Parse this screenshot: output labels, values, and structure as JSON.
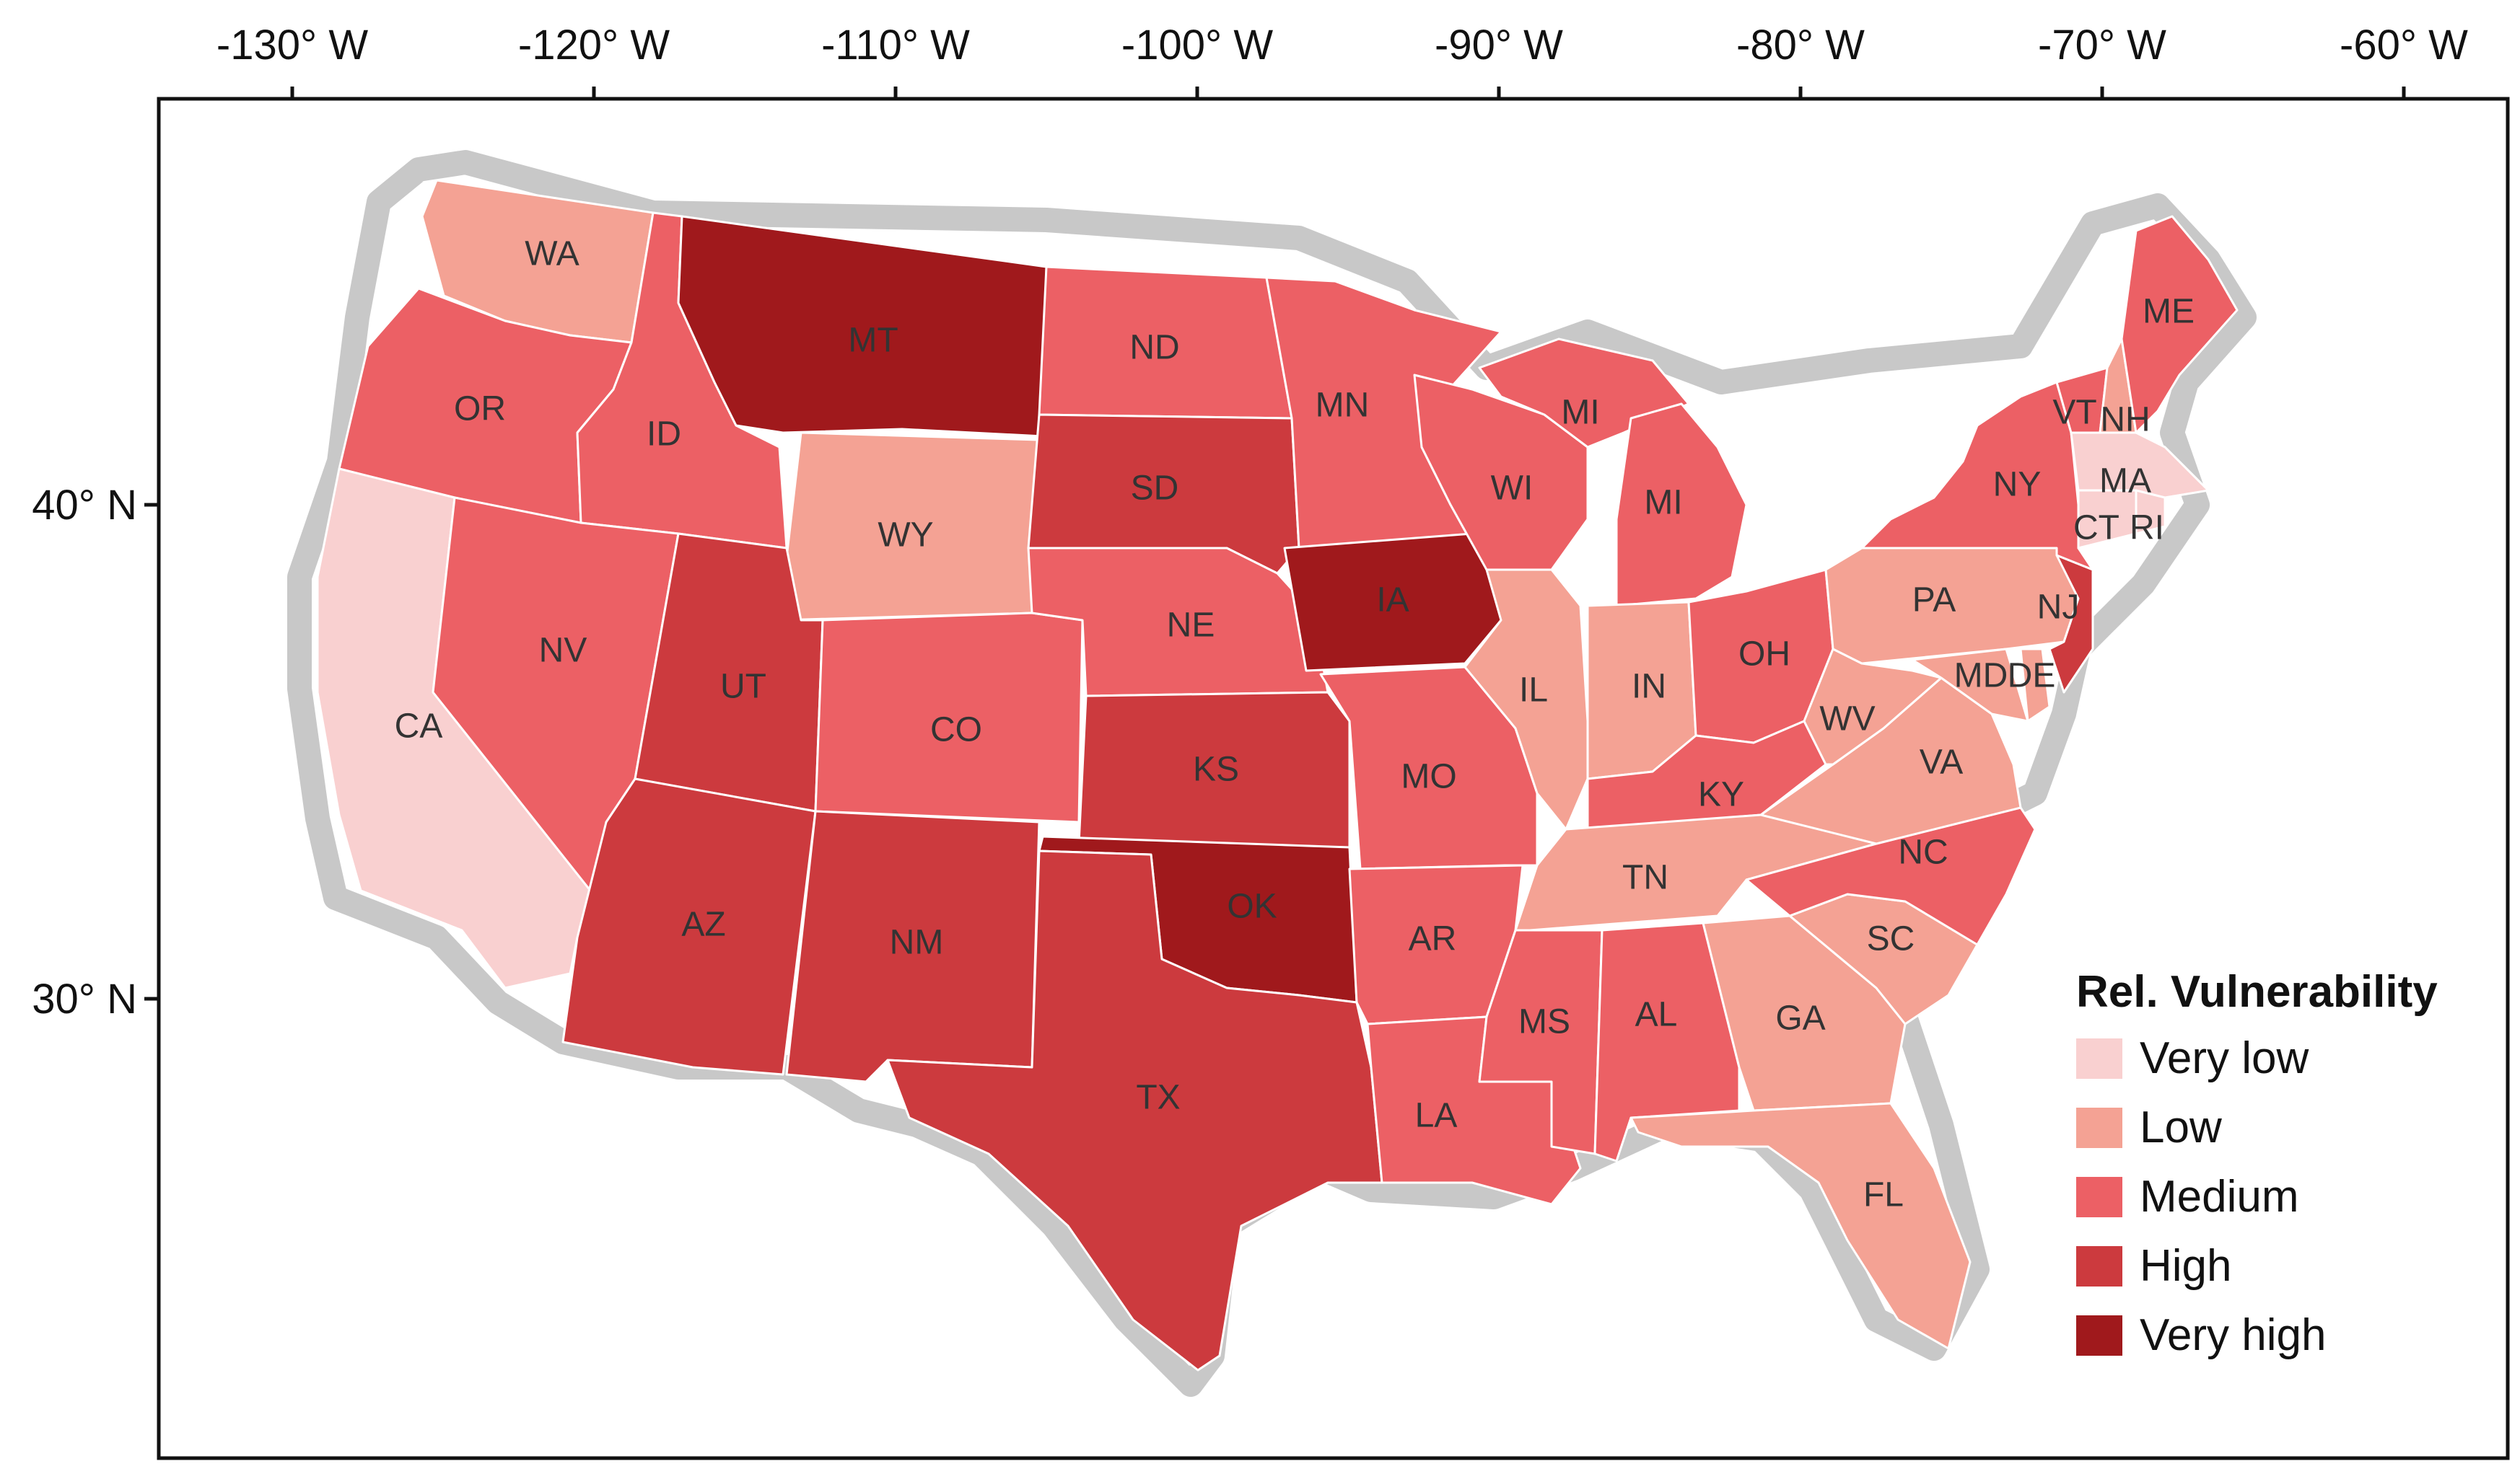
{
  "x_ticks": [
    {
      "lon": -130,
      "label": "-130° W"
    },
    {
      "lon": -120,
      "label": "-120° W"
    },
    {
      "lon": -110,
      "label": "-110° W"
    },
    {
      "lon": -100,
      "label": "-100° W"
    },
    {
      "lon": -90,
      "label": "-90° W"
    },
    {
      "lon": -80,
      "label": "-80° W"
    },
    {
      "lon": -70,
      "label": "-70° W"
    },
    {
      "lon": -60,
      "label": "-60° W"
    }
  ],
  "y_ticks": [
    {
      "lat": 40,
      "label": "40° N"
    },
    {
      "lat": 30,
      "label": "30° N"
    }
  ],
  "legend": {
    "title": "Rel. Vulnerability",
    "classes": [
      {
        "label": "Very low",
        "color": "#f9d0d0"
      },
      {
        "label": "Low",
        "color": "#f4a294"
      },
      {
        "label": "Medium",
        "color": "#ec6065"
      },
      {
        "label": "High",
        "color": "#cc3a3e"
      },
      {
        "label": "Very high",
        "color": "#a0191c"
      }
    ]
  },
  "colors": {
    "halo": "#c8c8c8",
    "frame": "#111111",
    "label": "#333333"
  },
  "states": [
    {
      "abbr": "WA",
      "class": "Low"
    },
    {
      "abbr": "OR",
      "class": "Medium"
    },
    {
      "abbr": "CA",
      "class": "Very low"
    },
    {
      "abbr": "ID",
      "class": "Medium"
    },
    {
      "abbr": "NV",
      "class": "Medium"
    },
    {
      "abbr": "MT",
      "class": "Very high"
    },
    {
      "abbr": "WY",
      "class": "Low"
    },
    {
      "abbr": "UT",
      "class": "High"
    },
    {
      "abbr": "AZ",
      "class": "High"
    },
    {
      "abbr": "CO",
      "class": "Medium"
    },
    {
      "abbr": "NM",
      "class": "High"
    },
    {
      "abbr": "ND",
      "class": "Medium"
    },
    {
      "abbr": "SD",
      "class": "High"
    },
    {
      "abbr": "NE",
      "class": "Medium"
    },
    {
      "abbr": "KS",
      "class": "High"
    },
    {
      "abbr": "OK",
      "class": "Very high"
    },
    {
      "abbr": "TX",
      "class": "High"
    },
    {
      "abbr": "MN",
      "class": "Medium"
    },
    {
      "abbr": "IA",
      "class": "Very high"
    },
    {
      "abbr": "MO",
      "class": "Medium"
    },
    {
      "abbr": "AR",
      "class": "Medium"
    },
    {
      "abbr": "LA",
      "class": "Medium"
    },
    {
      "abbr": "WI",
      "class": "Medium"
    },
    {
      "abbr": "IL",
      "class": "Low"
    },
    {
      "abbr": "MI",
      "class": "Medium"
    },
    {
      "abbr": "IN",
      "class": "Low"
    },
    {
      "abbr": "OH",
      "class": "Medium"
    },
    {
      "abbr": "KY",
      "class": "Medium"
    },
    {
      "abbr": "TN",
      "class": "Low"
    },
    {
      "abbr": "MS",
      "class": "Medium"
    },
    {
      "abbr": "AL",
      "class": "Medium"
    },
    {
      "abbr": "GA",
      "class": "Low"
    },
    {
      "abbr": "FL",
      "class": "Low"
    },
    {
      "abbr": "SC",
      "class": "Low"
    },
    {
      "abbr": "NC",
      "class": "Medium"
    },
    {
      "abbr": "VA",
      "class": "Low"
    },
    {
      "abbr": "WV",
      "class": "Low"
    },
    {
      "abbr": "PA",
      "class": "Low"
    },
    {
      "abbr": "NY",
      "class": "Medium"
    },
    {
      "abbr": "NJ",
      "class": "High"
    },
    {
      "abbr": "MD",
      "class": "Low"
    },
    {
      "abbr": "DE",
      "class": "Low"
    },
    {
      "abbr": "VT",
      "class": "Medium"
    },
    {
      "abbr": "NH",
      "class": "Low"
    },
    {
      "abbr": "ME",
      "class": "Medium"
    },
    {
      "abbr": "MA",
      "class": "Very low"
    },
    {
      "abbr": "CT",
      "class": "Very low"
    },
    {
      "abbr": "RI",
      "class": "Very low"
    }
  ]
}
